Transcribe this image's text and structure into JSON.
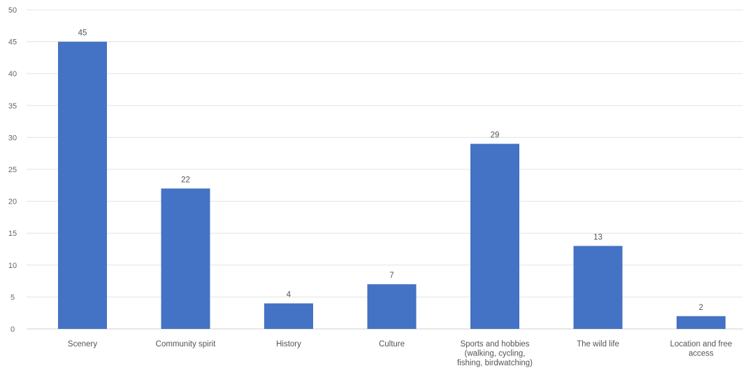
{
  "chart_data": {
    "type": "bar",
    "title": "",
    "xlabel": "",
    "ylabel": "",
    "categories": [
      "Scenery",
      "Community spirit",
      "History",
      "Culture",
      "Sports and hobbies (walking, cycling, fishing, birdwatching)",
      "The wild life",
      "Location and free access"
    ],
    "category_label_lines": [
      [
        "Scenery"
      ],
      [
        "Community spirit"
      ],
      [
        "History"
      ],
      [
        "Culture"
      ],
      [
        "Sports and hobbies",
        "(walking, cycling,",
        "fishing, birdwatching)"
      ],
      [
        "The wild life"
      ],
      [
        "Location and free",
        "access"
      ]
    ],
    "values": [
      45,
      22,
      4,
      7,
      29,
      13,
      2
    ],
    "data_labels": [
      "45",
      "22",
      "4",
      "7",
      "29",
      "13",
      "2"
    ],
    "ylim": [
      0,
      50
    ],
    "yticks": [
      0,
      5,
      10,
      15,
      20,
      25,
      30,
      35,
      40,
      45,
      50
    ],
    "ytick_labels": [
      "0",
      "5",
      "10",
      "15",
      "20",
      "25",
      "30",
      "35",
      "40",
      "45",
      "50"
    ],
    "grid": true,
    "legend": "none",
    "colors": {
      "bar": "#4472C4",
      "grid": "#e3e3e3",
      "axis": "#cfcfcf",
      "text": "#555555"
    }
  }
}
